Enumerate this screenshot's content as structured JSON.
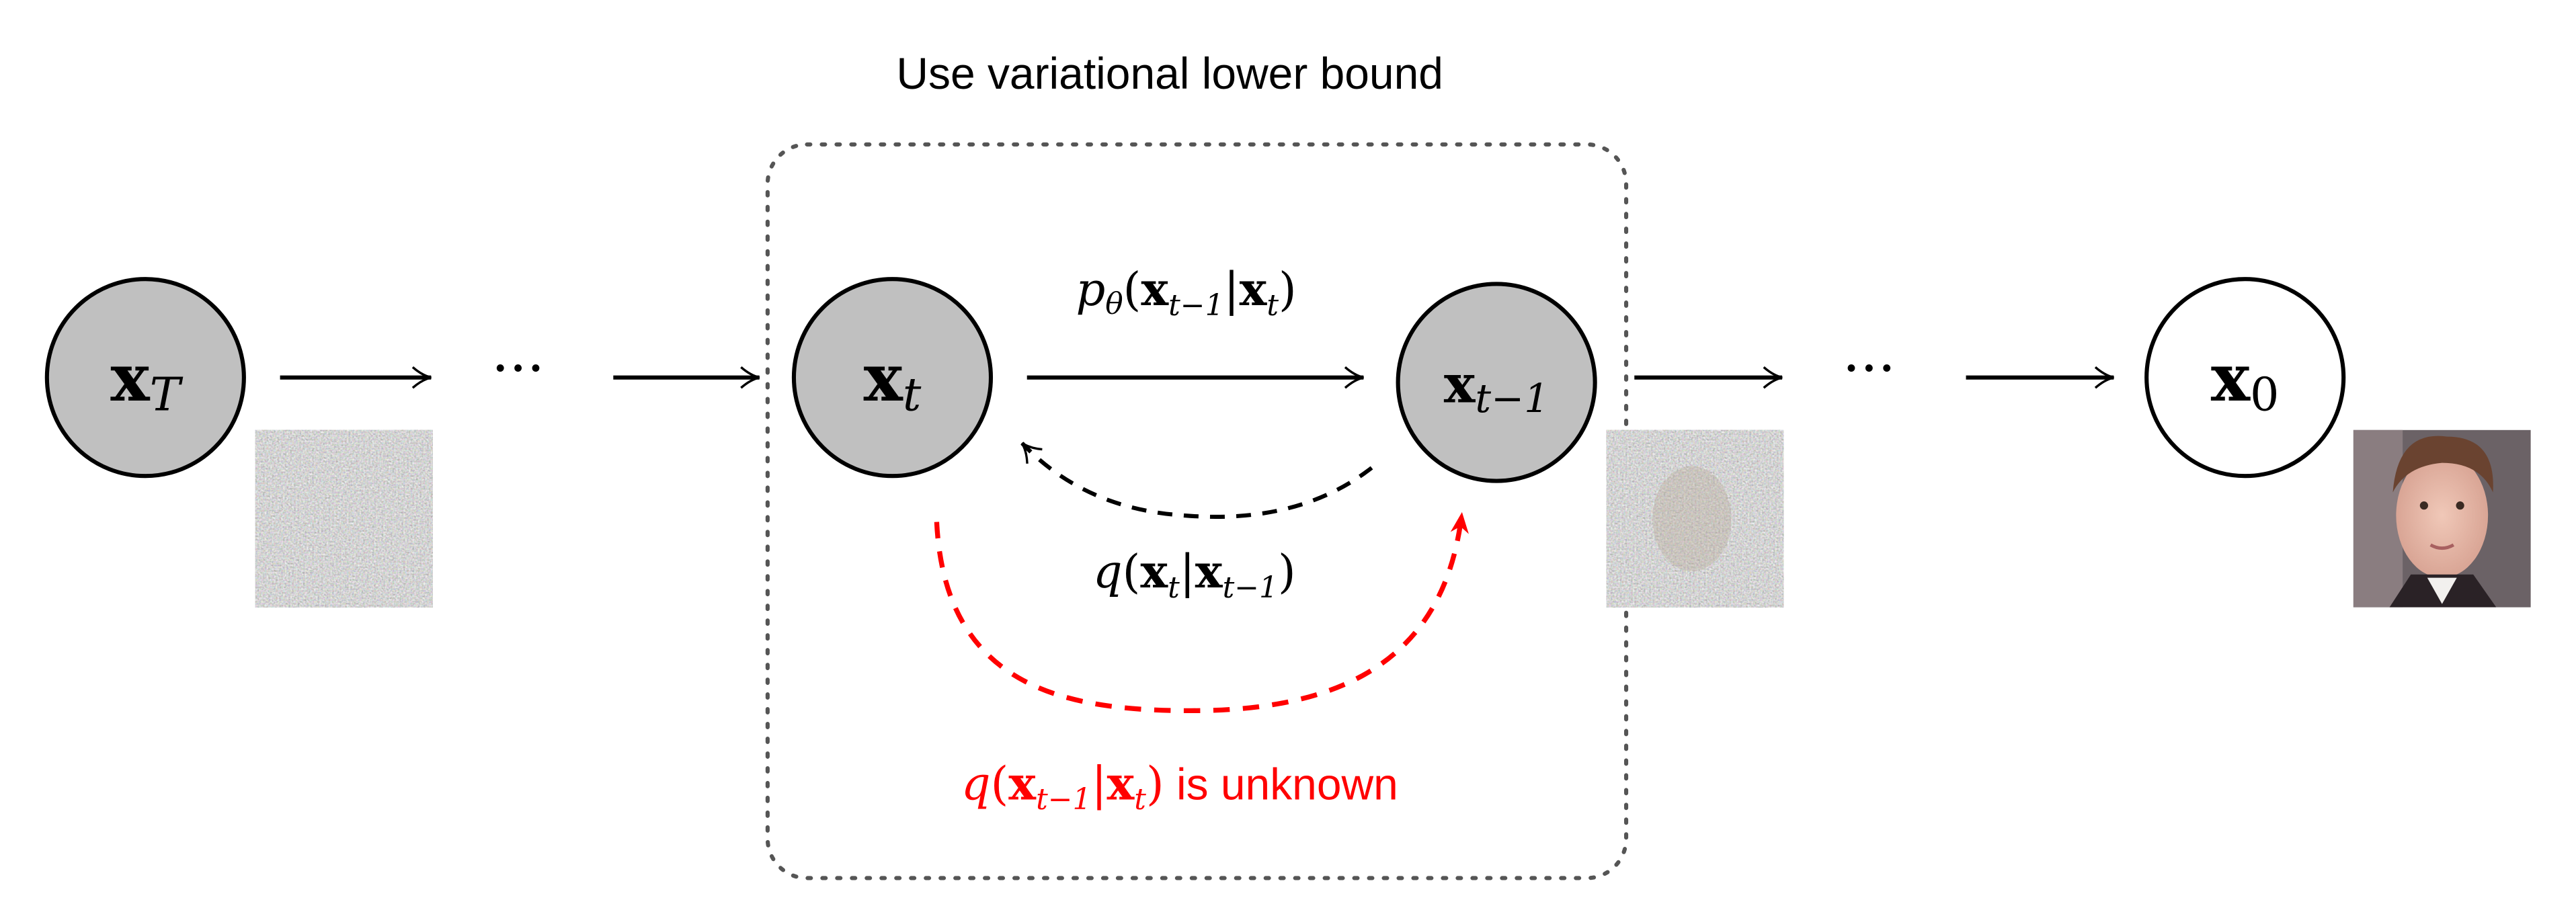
{
  "title": "Use variational lower bound",
  "colors": {
    "node_fill_latent": "#c0c0c0",
    "node_fill_observed": "#ffffff",
    "stroke": "#000000",
    "highlight": "#ff0000",
    "box_border": "#555555"
  },
  "nodes": [
    {
      "base": "x",
      "sub": "T"
    },
    {
      "base": "x",
      "sub": "t"
    },
    {
      "base": "x",
      "sub": "t−1"
    },
    {
      "base": "x",
      "sub": "0"
    }
  ],
  "ellipsis": "···",
  "reverse_label": {
    "p": "p",
    "theta": "θ",
    "open": "(",
    "x1": "x",
    "s1": "t−1",
    "bar": "|",
    "x2": "x",
    "s2": "t",
    "close": ")"
  },
  "forward_label": {
    "q": "q",
    "open": "(",
    "x1": "x",
    "s1": "t",
    "bar": "|",
    "x2": "x",
    "s2": "t−1",
    "close": ")"
  },
  "unknown_label": {
    "q": "q",
    "open": "(",
    "x1": "x",
    "s1": "t−1",
    "bar": "|",
    "x2": "x",
    "s2": "t",
    "close": ")",
    "suffix": " is unknown"
  },
  "images": [
    "pure-noise-image",
    "noisy-face-image",
    "face-image"
  ]
}
